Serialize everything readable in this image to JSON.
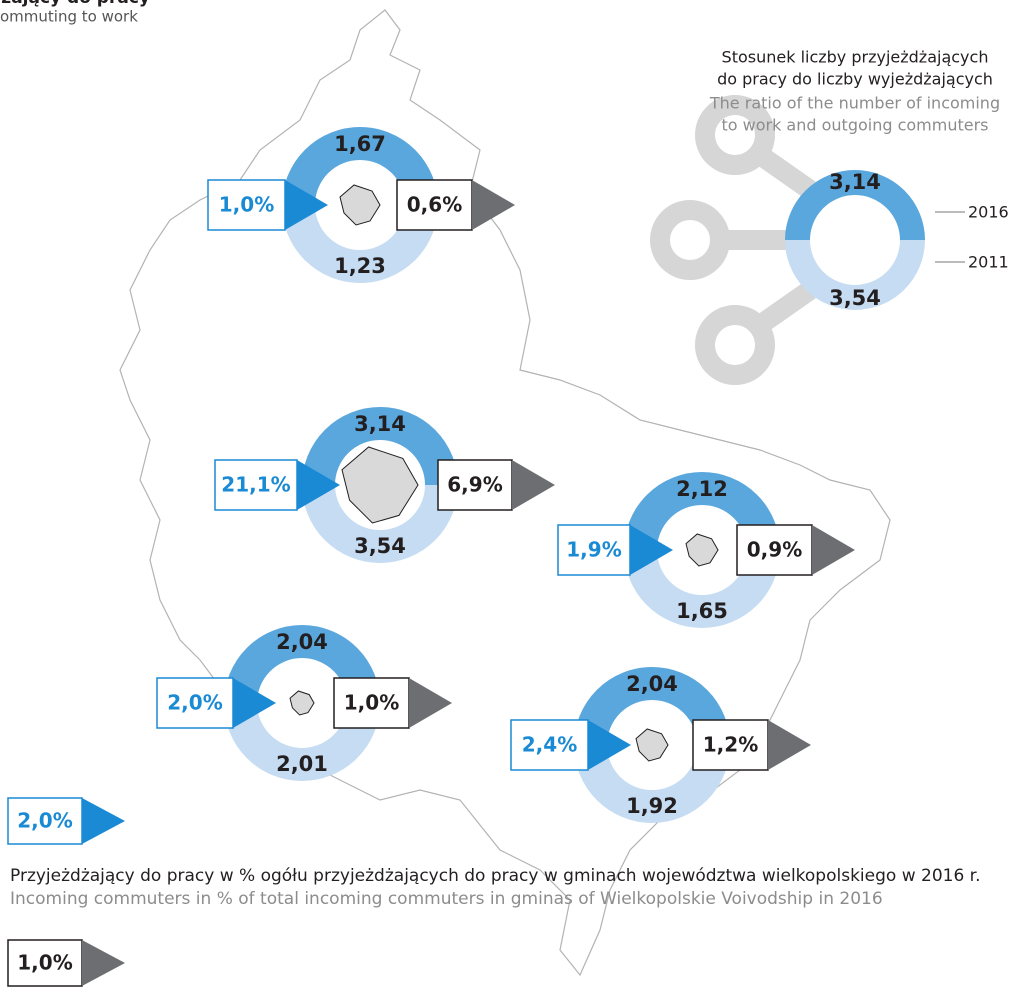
{
  "header": {
    "title": "Wyjeżdżający do pracy",
    "subtitle": "ommuting to work"
  },
  "ratio_legend": {
    "title_pl_1": "Stosunek liczby przyjeżdżających",
    "title_pl_2": "do pracy do liczby wyjeżdżających",
    "title_en_1": "The ratio of the number of incoming",
    "title_en_2": "to work and outgoing commuters",
    "top_value": "3,14",
    "bottom_value": "3,54",
    "top_year": "2016",
    "bottom_year": "2011"
  },
  "cities": [
    {
      "top": "1,67",
      "bottom": "1,23",
      "incoming": "1,0%",
      "outgoing": "0,6%"
    },
    {
      "top": "3,14",
      "bottom": "3,54",
      "incoming": "21,1%",
      "outgoing": "6,9%"
    },
    {
      "top": "2,12",
      "bottom": "1,65",
      "incoming": "1,9%",
      "outgoing": "0,9%"
    },
    {
      "top": "2,04",
      "bottom": "2,01",
      "incoming": "2,0%",
      "outgoing": "1,0%"
    },
    {
      "top": "2,04",
      "bottom": "1,92",
      "incoming": "2,4%",
      "outgoing": "1,2%"
    }
  ],
  "legend": {
    "incoming_example": "2,0%",
    "outgoing_example": "1,0%",
    "description_pl": "Przyjeżdżający do pracy w % ogółu przyjeżdżających do pracy w gminach województwa wielkopolskiego w 2016 r.",
    "description_en": "Incoming commuters in % of total incoming commuters in gminas of Wielkopolskie Voivodship in 2016"
  }
}
